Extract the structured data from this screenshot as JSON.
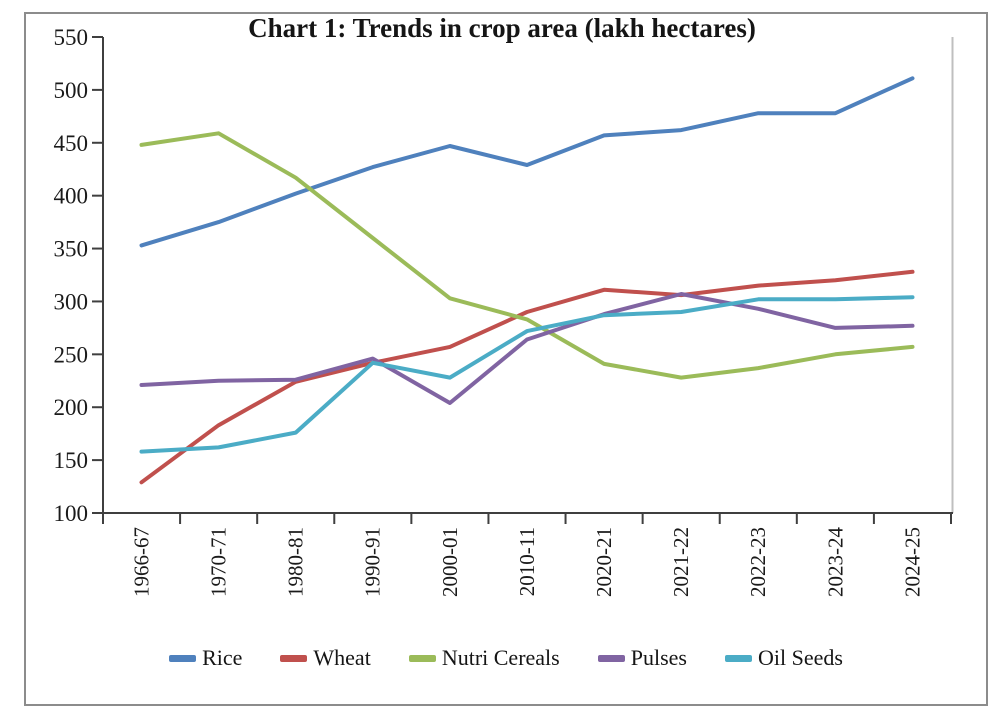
{
  "title": "Chart 1: Trends in crop area (lakh hectares)",
  "chart_data": {
    "type": "line",
    "title": "Chart 1: Trends in crop area (lakh hectares)",
    "categories": [
      "1966-67",
      "1970-71",
      "1980-81",
      "1990-91",
      "2000-01",
      "2010-11",
      "2020-21",
      "2021-22",
      "2022-23",
      "2023-24",
      "2024-25"
    ],
    "series": [
      {
        "name": "Rice",
        "color": "#4F81BD",
        "values": [
          353,
          375,
          402,
          427,
          447,
          429,
          457,
          462,
          478,
          478,
          511
        ]
      },
      {
        "name": "Wheat",
        "color": "#C0504D",
        "values": [
          129,
          183,
          224,
          242,
          257,
          290,
          311,
          306,
          315,
          320,
          328
        ]
      },
      {
        "name": "Nutri Cereals",
        "color": "#9BBB59",
        "values": [
          448,
          459,
          417,
          360,
          303,
          283,
          241,
          228,
          237,
          250,
          257
        ]
      },
      {
        "name": "Pulses",
        "color": "#8064A2",
        "values": [
          221,
          225,
          226,
          246,
          204,
          264,
          288,
          307,
          293,
          275,
          277
        ]
      },
      {
        "name": "Oil Seeds",
        "color": "#4BACC6",
        "values": [
          158,
          162,
          176,
          242,
          228,
          272,
          287,
          290,
          302,
          302,
          304
        ]
      }
    ],
    "xlabel": "",
    "ylabel": "",
    "ylim": [
      100,
      550
    ],
    "ytick_step": 50,
    "ytick_labels": [
      "100",
      "150",
      "200",
      "250",
      "300",
      "350",
      "400",
      "450",
      "500",
      "550"
    ],
    "grid": false,
    "legend_position": "bottom",
    "units": "lakh hectares"
  },
  "colors": {
    "axis": "#3f3f3f",
    "text": "#1a1a1a",
    "frame_border": "#8c8c8c",
    "plot_right_border": "#bfbfbf"
  }
}
